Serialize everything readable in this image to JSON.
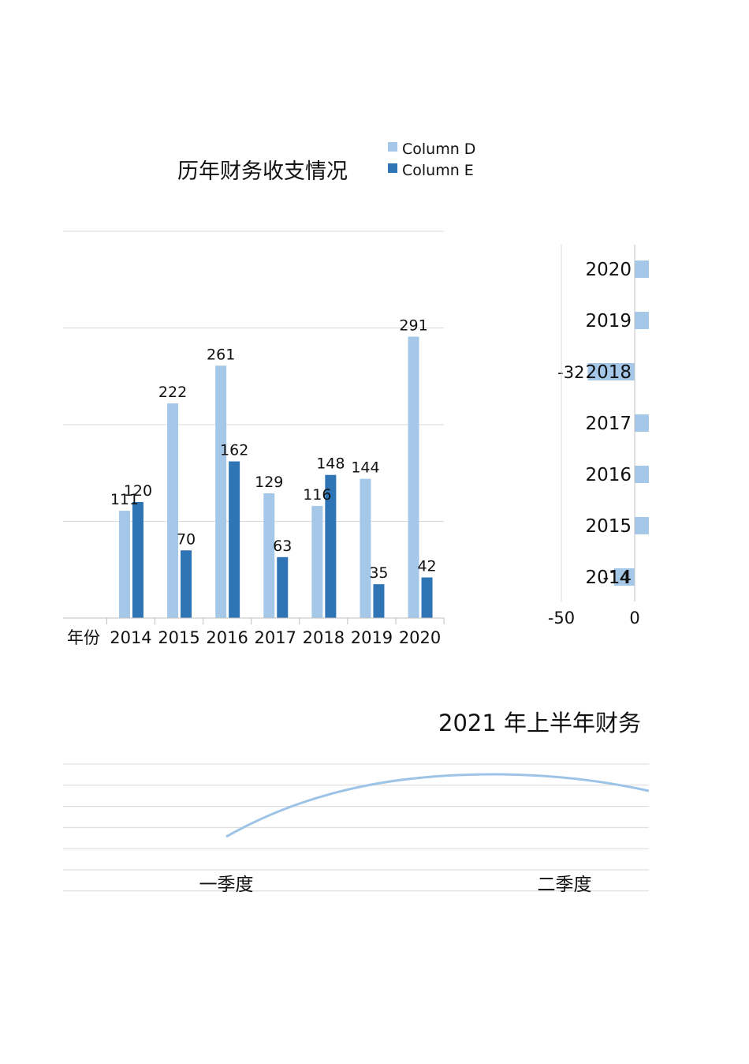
{
  "colors": {
    "light": "#a6c8e8",
    "dark": "#2f74b5",
    "grid": "#d9d9d9",
    "axis": "#bfbfbf",
    "line": "#9dc3e6"
  },
  "chart_data": [
    {
      "type": "bar",
      "title": "历年财务收支情况",
      "category_header": "年份",
      "categories": [
        "2014",
        "2015",
        "2016",
        "2017",
        "2018",
        "2019",
        "2020"
      ],
      "series": [
        {
          "name": "Column D",
          "values": [
            111,
            222,
            261,
            129,
            116,
            144,
            291
          ]
        },
        {
          "name": "Column E",
          "values": [
            120,
            70,
            162,
            63,
            148,
            35,
            42
          ]
        }
      ],
      "ylim": [
        0,
        400
      ],
      "grid": true,
      "legend": "top-right"
    },
    {
      "type": "bar",
      "orientation": "horizontal",
      "categories": [
        "2014",
        "2015",
        "2016",
        "2017",
        "2018",
        "2019",
        "2020"
      ],
      "values": [
        -14,
        15,
        15,
        15,
        -32,
        15,
        15
      ],
      "data_labels": [
        "-14",
        "",
        "",
        "",
        "-32",
        "",
        ""
      ],
      "xlim": [
        -50,
        15
      ],
      "x_ticks": [
        "-50",
        "0"
      ]
    },
    {
      "type": "line",
      "title": "2021 年上半年财务",
      "categories": [
        "一季度",
        "二季度"
      ],
      "values": [
        30,
        55
      ],
      "grid": true
    }
  ]
}
